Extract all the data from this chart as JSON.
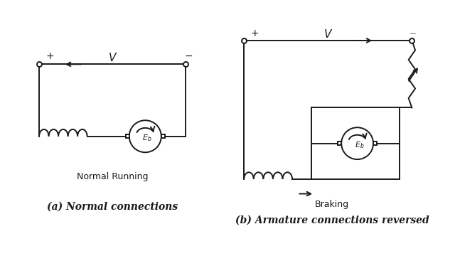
{
  "bg_color": "#ffffff",
  "line_color": "#1a1a1a",
  "title_a": "(a) Normal connections",
  "title_b": "(b) Armature connections reversed",
  "label_a": "Normal Running",
  "label_b": "Braking",
  "V_label": "V"
}
